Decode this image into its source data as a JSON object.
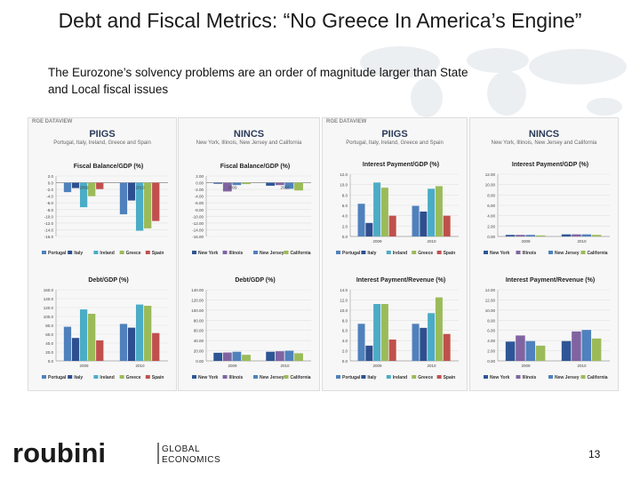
{
  "slide": {
    "title": "Debt and Fiscal Metrics: “No Greece In America’s Engine”",
    "subtitle": "The Eurozone’s solvency problems are an order of magnitude larger than State and Local fiscal issues",
    "page_number": "13",
    "logo_text": "roubini",
    "logo_tag_1": "GLOBAL",
    "logo_tag_2": "ECONOMICS",
    "brand": "RGE DATAVIEW"
  },
  "panels": [
    {
      "title": "PIIGS",
      "subtitle": "Portugal, Italy, Ireland, Greece and Spain"
    },
    {
      "title": "NINCS",
      "subtitle": "New York, Illinois, New Jersey and California"
    },
    {
      "title": "PIIGS",
      "subtitle": "Portugal, Italy, Ireland, Greece and Spain"
    },
    {
      "title": "NINCS",
      "subtitle": "New York, Illinois, New Jersey and California"
    }
  ],
  "colors": {
    "euro": [
      "#4f81bd",
      "#2e4f8f",
      "#4bacc6",
      "#9bbb59",
      "#c0504d"
    ],
    "us": [
      "#2e5596",
      "#8064a2",
      "#4f81bd",
      "#9bbb59"
    ]
  },
  "chart_data": [
    {
      "id": "c1",
      "type": "bar",
      "title": "Fiscal Balance/GDP (%)",
      "categories": [
        "2009",
        "2010"
      ],
      "series": [
        {
          "name": "Portugal",
          "values": [
            -2.8,
            -9.4
          ]
        },
        {
          "name": "Italy",
          "values": [
            -1.6,
            -5.3
          ]
        },
        {
          "name": "Ireland",
          "values": [
            -7.3,
            -14.3
          ]
        },
        {
          "name": "Greece",
          "values": [
            -4.0,
            -13.6
          ]
        },
        {
          "name": "Spain",
          "values": [
            -1.9,
            -11.4
          ]
        }
      ],
      "ylim": [
        -16,
        2
      ],
      "yticks": [
        "2.0",
        "0.0",
        "-2.0",
        "-4.0",
        "-6.0",
        "-8.0",
        "-10.0",
        "-12.0",
        "-14.0",
        "-16.0"
      ],
      "legend": [
        "Portugal",
        "Italy",
        "Ireland",
        "Greece",
        "Spain"
      ]
    },
    {
      "id": "c2",
      "type": "bar",
      "title": "Fiscal Balance/GDP (%)",
      "categories": [
        "2009",
        "2010"
      ],
      "series": [
        {
          "name": "New York",
          "values": [
            -0.3,
            -0.9
          ]
        },
        {
          "name": "Illinois",
          "values": [
            -2.6,
            -0.7
          ]
        },
        {
          "name": "New Jersey",
          "values": [
            -0.7,
            -1.8
          ]
        },
        {
          "name": "California",
          "values": [
            -0.4,
            -2.3
          ]
        }
      ],
      "ylim": [
        -16,
        2
      ],
      "yticks": [
        "2.00",
        "0.00",
        "-2.00",
        "-4.00",
        "-6.00",
        "-8.00",
        "-10.00",
        "-12.00",
        "-14.00",
        "-16.00"
      ],
      "legend": [
        "New York",
        "Illinois",
        "New Jersey",
        "California"
      ]
    },
    {
      "id": "c3",
      "type": "bar",
      "title": "Interest Payment/GDP (%)",
      "categories": [
        "2009",
        "2010"
      ],
      "series": [
        {
          "name": "Portugal",
          "values": [
            6.3,
            5.9
          ]
        },
        {
          "name": "Italy",
          "values": [
            2.6,
            4.8
          ]
        },
        {
          "name": "Ireland",
          "values": [
            10.4,
            9.2
          ]
        },
        {
          "name": "Greece",
          "values": [
            9.4,
            9.7
          ]
        },
        {
          "name": "Spain",
          "values": [
            4.0,
            4.0
          ]
        }
      ],
      "ylim": [
        0,
        12
      ],
      "yticks": [
        "12.0",
        "10.0",
        "8.0",
        "6.0",
        "4.0",
        "2.0",
        "0.0"
      ],
      "legend": [
        "Portugal",
        "Italy",
        "Ireland",
        "Greece",
        "Spain"
      ]
    },
    {
      "id": "c4",
      "type": "bar",
      "title": "Interest Payment/GDP (%)",
      "categories": [
        "2009",
        "2010"
      ],
      "series": [
        {
          "name": "New York",
          "values": [
            0.3,
            0.4
          ]
        },
        {
          "name": "Illinois",
          "values": [
            0.3,
            0.4
          ]
        },
        {
          "name": "New Jersey",
          "values": [
            0.3,
            0.4
          ]
        },
        {
          "name": "California",
          "values": [
            0.2,
            0.3
          ]
        }
      ],
      "ylim": [
        0,
        12
      ],
      "yticks": [
        "12.00",
        "10.00",
        "8.00",
        "6.00",
        "4.00",
        "2.00",
        "0.00"
      ],
      "legend": [
        "New York",
        "Illinois",
        "New Jersey",
        "California"
      ]
    },
    {
      "id": "c5",
      "type": "bar",
      "title": "Debt/GDP (%)",
      "categories": [
        "2009",
        "2010"
      ],
      "series": [
        {
          "name": "Portugal",
          "values": [
            76.8,
            83.2
          ]
        },
        {
          "name": "Italy",
          "values": [
            51.6,
            74.8
          ]
        },
        {
          "name": "Ireland",
          "values": [
            115.8,
            126.8
          ]
        },
        {
          "name": "Greece",
          "values": [
            106.0,
            124.0
          ]
        },
        {
          "name": "Spain",
          "values": [
            46.2,
            62.6
          ]
        }
      ],
      "ylim": [
        0,
        160
      ],
      "yticks": [
        "160.0",
        "140.0",
        "120.0",
        "100.0",
        "80.0",
        "60.0",
        "40.0",
        "20.0",
        "0.0"
      ],
      "legend": [
        "Portugal",
        "Italy",
        "Ireland",
        "Greece",
        "Spain"
      ]
    },
    {
      "id": "c6",
      "type": "bar",
      "title": "Debt/GDP (%)",
      "categories": [
        "2009",
        "2010"
      ],
      "series": [
        {
          "name": "New York",
          "values": [
            16.0,
            18.0
          ]
        },
        {
          "name": "Illinois",
          "values": [
            16.5,
            19.0
          ]
        },
        {
          "name": "New Jersey",
          "values": [
            18.0,
            20.0
          ]
        },
        {
          "name": "California",
          "values": [
            12.0,
            15.0
          ]
        }
      ],
      "ylim": [
        0,
        140
      ],
      "yticks": [
        "140.00",
        "120.00",
        "100.00",
        "80.00",
        "60.00",
        "40.00",
        "20.00",
        "0.00"
      ],
      "legend": [
        "New York",
        "Illinois",
        "New Jersey",
        "California"
      ]
    },
    {
      "id": "c7",
      "type": "bar",
      "title": "Interest Payment/Revenue (%)",
      "categories": [
        "2009",
        "2010"
      ],
      "series": [
        {
          "name": "Portugal",
          "values": [
            7.3,
            7.3
          ]
        },
        {
          "name": "Italy",
          "values": [
            3.0,
            6.5
          ]
        },
        {
          "name": "Ireland",
          "values": [
            11.2,
            9.4
          ]
        },
        {
          "name": "Greece",
          "values": [
            11.2,
            12.5
          ]
        },
        {
          "name": "Spain",
          "values": [
            4.2,
            5.3
          ]
        }
      ],
      "ylim": [
        0,
        14
      ],
      "yticks": [
        "14.0",
        "12.0",
        "10.0",
        "8.0",
        "6.0",
        "4.0",
        "2.0",
        "0.0"
      ],
      "legend": [
        "Portugal",
        "Italy",
        "Ireland",
        "Greece",
        "Spain"
      ]
    },
    {
      "id": "c8",
      "type": "bar",
      "title": "Interest Payment/Revenue (%)",
      "categories": [
        "2009",
        "2010"
      ],
      "series": [
        {
          "name": "New York",
          "values": [
            3.8,
            3.9
          ]
        },
        {
          "name": "Illinois",
          "values": [
            5.0,
            5.8
          ]
        },
        {
          "name": "New Jersey",
          "values": [
            3.9,
            6.1
          ]
        },
        {
          "name": "California",
          "values": [
            3.0,
            4.4
          ]
        }
      ],
      "ylim": [
        0,
        14
      ],
      "yticks": [
        "14.00",
        "12.00",
        "10.00",
        "8.00",
        "6.00",
        "4.00",
        "2.00",
        "0.00"
      ],
      "legend": [
        "New York",
        "Illinois",
        "New Jersey",
        "California"
      ]
    }
  ]
}
